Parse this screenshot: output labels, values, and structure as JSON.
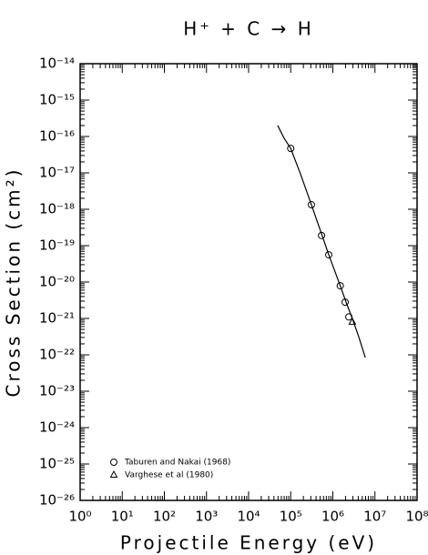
{
  "chart_data": {
    "type": "scatter",
    "title": "H⁺ + C → H",
    "xlabel": "Projectile Energy (eV)",
    "ylabel": "Cross Section (cm²)",
    "xscale": "log",
    "yscale": "log",
    "minor_ticks": true,
    "legend": "lower left",
    "xlim": [
      1,
      100000000
    ],
    "ylim": [
      1e-26,
      1e-14
    ],
    "xticks": [
      {
        "value": 1,
        "label": "10⁰"
      },
      {
        "value": 10,
        "label": "10¹"
      },
      {
        "value": 100,
        "label": "10²"
      },
      {
        "value": 1000,
        "label": "10³"
      },
      {
        "value": 10000,
        "label": "10⁴"
      },
      {
        "value": 100000,
        "label": "10⁵"
      },
      {
        "value": 1000000,
        "label": "10⁶"
      },
      {
        "value": 10000000,
        "label": "10⁷"
      },
      {
        "value": 100000000,
        "label": "10⁸"
      }
    ],
    "yticks": [
      {
        "value": 1e-26,
        "label": "10⁻²⁶"
      },
      {
        "value": 1e-25,
        "label": "10⁻²⁵"
      },
      {
        "value": 1e-24,
        "label": "10⁻²⁴"
      },
      {
        "value": 1e-23,
        "label": "10⁻²³"
      },
      {
        "value": 1e-22,
        "label": "10⁻²²"
      },
      {
        "value": 1e-21,
        "label": "10⁻²¹"
      },
      {
        "value": 1e-20,
        "label": "10⁻²⁰"
      },
      {
        "value": 1e-19,
        "label": "10⁻¹⁹"
      },
      {
        "value": 1e-18,
        "label": "10⁻¹⁸"
      },
      {
        "value": 1e-17,
        "label": "10⁻¹⁷"
      },
      {
        "value": 1e-16,
        "label": "10⁻¹⁶"
      },
      {
        "value": 1e-15,
        "label": "10⁻¹⁵"
      },
      {
        "value": 1e-14,
        "label": "10⁻¹⁴"
      }
    ],
    "series": [
      {
        "marker": "none",
        "color": "#000000",
        "x": [
          49000,
          70000,
          100000,
          170000,
          310000,
          540000,
          800000,
          1500000,
          2060000,
          2900000,
          4100000,
          5900000
        ],
        "values": [
          2e-16,
          8.9e-17,
          4.7e-17,
          9.4e-18,
          1.33e-18,
          2.1e-19,
          5.6e-20,
          7.9e-21,
          2.8e-21,
          1e-21,
          3.2e-22,
          8.4e-23
        ]
      },
      {
        "name": "Taburen and Nakai (1968)",
        "marker": "circle",
        "color": "#000000",
        "x": [
          100000,
          310000,
          540000,
          800000,
          1500000,
          1960000,
          2400000
        ],
        "values": [
          4.7e-17,
          1.33e-18,
          1.9e-19,
          5.6e-20,
          7.9e-21,
          2.8e-21,
          1.1e-21
        ]
      },
      {
        "name": "Varghese et al (1980)",
        "marker": "triangle",
        "color": "#000000",
        "x": [
          2900000
        ],
        "values": [
          8e-22
        ]
      }
    ]
  }
}
